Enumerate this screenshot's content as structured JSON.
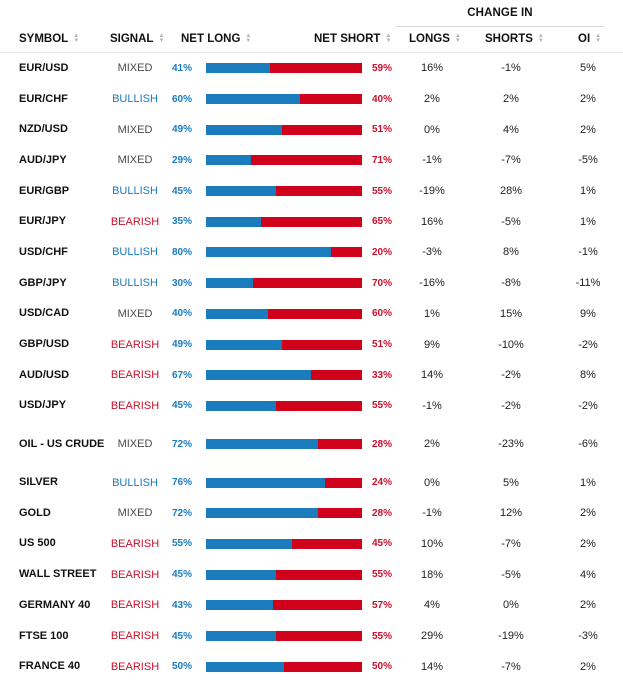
{
  "table": {
    "group_header": "CHANGE IN",
    "headers": {
      "symbol": "SYMBOL",
      "signal": "SIGNAL",
      "net_long": "NET LONG",
      "net_short": "NET SHORT",
      "longs": "LONGS",
      "shorts": "SHORTS",
      "oi": "OI"
    },
    "sort_icon": "sort-arrows-icon",
    "colors": {
      "long": "#1a7bbd",
      "short": "#d0021b",
      "bullish": "#1a7bbd",
      "bearish": "#c7102c",
      "mixed": "#4a4a4a"
    },
    "rows": [
      {
        "symbol": "EUR/USD",
        "signal": "MIXED",
        "net_long": "41%",
        "net_long_pct": 41,
        "net_short": "59%",
        "longs": "16%",
        "shorts": "-1%",
        "oi": "5%"
      },
      {
        "symbol": "EUR/CHF",
        "signal": "BULLISH",
        "net_long": "60%",
        "net_long_pct": 60,
        "net_short": "40%",
        "longs": "2%",
        "shorts": "2%",
        "oi": "2%"
      },
      {
        "symbol": "NZD/USD",
        "signal": "MIXED",
        "net_long": "49%",
        "net_long_pct": 49,
        "net_short": "51%",
        "longs": "0%",
        "shorts": "4%",
        "oi": "2%"
      },
      {
        "symbol": "AUD/JPY",
        "signal": "MIXED",
        "net_long": "29%",
        "net_long_pct": 29,
        "net_short": "71%",
        "longs": "-1%",
        "shorts": "-7%",
        "oi": "-5%"
      },
      {
        "symbol": "EUR/GBP",
        "signal": "BULLISH",
        "net_long": "45%",
        "net_long_pct": 45,
        "net_short": "55%",
        "longs": "-19%",
        "shorts": "28%",
        "oi": "1%"
      },
      {
        "symbol": "EUR/JPY",
        "signal": "BEARISH",
        "net_long": "35%",
        "net_long_pct": 35,
        "net_short": "65%",
        "longs": "16%",
        "shorts": "-5%",
        "oi": "1%"
      },
      {
        "symbol": "USD/CHF",
        "signal": "BULLISH",
        "net_long": "80%",
        "net_long_pct": 80,
        "net_short": "20%",
        "longs": "-3%",
        "shorts": "8%",
        "oi": "-1%"
      },
      {
        "symbol": "GBP/JPY",
        "signal": "BULLISH",
        "net_long": "30%",
        "net_long_pct": 30,
        "net_short": "70%",
        "longs": "-16%",
        "shorts": "-8%",
        "oi": "-11%"
      },
      {
        "symbol": "USD/CAD",
        "signal": "MIXED",
        "net_long": "40%",
        "net_long_pct": 40,
        "net_short": "60%",
        "longs": "1%",
        "shorts": "15%",
        "oi": "9%"
      },
      {
        "symbol": "GBP/USD",
        "signal": "BEARISH",
        "net_long": "49%",
        "net_long_pct": 49,
        "net_short": "51%",
        "longs": "9%",
        "shorts": "-10%",
        "oi": "-2%"
      },
      {
        "symbol": "AUD/USD",
        "signal": "BEARISH",
        "net_long": "67%",
        "net_long_pct": 67,
        "net_short": "33%",
        "longs": "14%",
        "shorts": "-2%",
        "oi": "8%"
      },
      {
        "symbol": "USD/JPY",
        "signal": "BEARISH",
        "net_long": "45%",
        "net_long_pct": 45,
        "net_short": "55%",
        "longs": "-1%",
        "shorts": "-2%",
        "oi": "-2%"
      },
      {
        "symbol": "OIL - US CRUDE",
        "signal": "MIXED",
        "net_long": "72%",
        "net_long_pct": 72,
        "net_short": "28%",
        "longs": "2%",
        "shorts": "-23%",
        "oi": "-6%"
      },
      {
        "symbol": "SILVER",
        "signal": "BULLISH",
        "net_long": "76%",
        "net_long_pct": 76,
        "net_short": "24%",
        "longs": "0%",
        "shorts": "5%",
        "oi": "1%"
      },
      {
        "symbol": "GOLD",
        "signal": "MIXED",
        "net_long": "72%",
        "net_long_pct": 72,
        "net_short": "28%",
        "longs": "-1%",
        "shorts": "12%",
        "oi": "2%"
      },
      {
        "symbol": "US 500",
        "signal": "BEARISH",
        "net_long": "55%",
        "net_long_pct": 55,
        "net_short": "45%",
        "longs": "10%",
        "shorts": "-7%",
        "oi": "2%"
      },
      {
        "symbol": "WALL STREET",
        "signal": "BEARISH",
        "net_long": "45%",
        "net_long_pct": 45,
        "net_short": "55%",
        "longs": "18%",
        "shorts": "-5%",
        "oi": "4%"
      },
      {
        "symbol": "GERMANY 40",
        "signal": "BEARISH",
        "net_long": "43%",
        "net_long_pct": 43,
        "net_short": "57%",
        "longs": "4%",
        "shorts": "0%",
        "oi": "2%"
      },
      {
        "symbol": "FTSE 100",
        "signal": "BEARISH",
        "net_long": "45%",
        "net_long_pct": 45,
        "net_short": "55%",
        "longs": "29%",
        "shorts": "-19%",
        "oi": "-3%"
      },
      {
        "symbol": "FRANCE 40",
        "signal": "BEARISH",
        "net_long": "50%",
        "net_long_pct": 50,
        "net_short": "50%",
        "longs": "14%",
        "shorts": "-7%",
        "oi": "2%"
      }
    ]
  }
}
